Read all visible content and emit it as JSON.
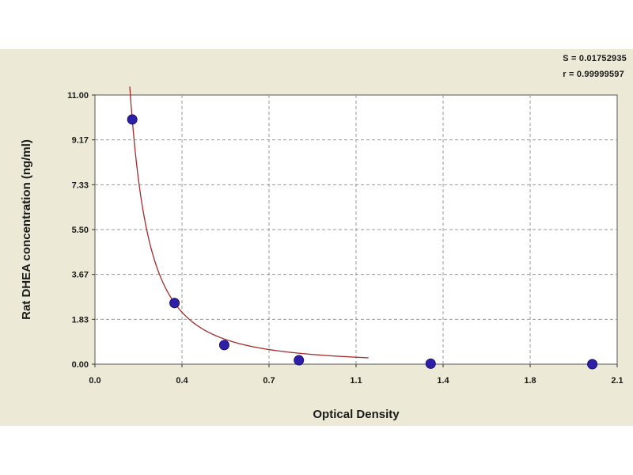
{
  "chart_data": {
    "type": "scatter",
    "title": "",
    "xlabel": "Optical Density",
    "ylabel": "Rat DHEA concentration (ng/ml)",
    "xlim": [
      0.0,
      2.1
    ],
    "ylim": [
      0.0,
      11.0
    ],
    "x_ticks": [
      "0.0",
      "0.4",
      "0.7",
      "1.1",
      "1.4",
      "1.8",
      "2.1"
    ],
    "y_ticks": [
      "0.00",
      "1.83",
      "3.67",
      "5.50",
      "7.33",
      "9.17",
      "11.00"
    ],
    "grid": true,
    "stats": [
      "S = 0.01752935",
      "r = 0.99999597"
    ],
    "series": [
      {
        "points": [
          {
            "x": 0.15,
            "y": 10.0
          },
          {
            "x": 0.32,
            "y": 2.5
          },
          {
            "x": 0.52,
            "y": 0.78
          },
          {
            "x": 0.82,
            "y": 0.16
          },
          {
            "x": 1.35,
            "y": 0.02
          },
          {
            "x": 2.0,
            "y": 0.0
          }
        ]
      }
    ],
    "colors": {
      "points": "#2d1fa8",
      "curve": "#a52a2a",
      "grid": "#9a9a9a",
      "plot_bg": "#ffffff",
      "panel_bg": "#ecead7"
    }
  }
}
